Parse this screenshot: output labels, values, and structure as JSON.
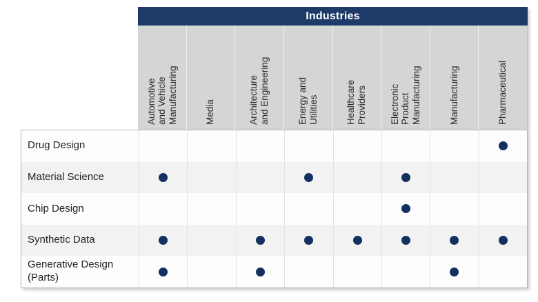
{
  "header": {
    "title": "Industries"
  },
  "matrix": {
    "columns_display": [
      "Automotive\nand Vehicle\nManufacturing",
      "Media",
      "Architecture\nand Engineering",
      "Energy and\nUtilities",
      "Healthcare\nProviders",
      "Electronic\nProduct\nManufacturing",
      "Manufacturing",
      "Pharmaceutical"
    ],
    "rows": [
      {
        "label": "Drug Design",
        "dots": [
          0,
          0,
          0,
          0,
          0,
          0,
          0,
          1
        ]
      },
      {
        "label": "Material Science",
        "dots": [
          1,
          0,
          0,
          1,
          0,
          1,
          0,
          0
        ]
      },
      {
        "label": "Chip Design",
        "dots": [
          0,
          0,
          0,
          0,
          0,
          1,
          0,
          0
        ]
      },
      {
        "label": "Synthetic Data",
        "dots": [
          1,
          0,
          1,
          1,
          1,
          1,
          1,
          1
        ]
      },
      {
        "label": "Generative Design (Parts)",
        "dots": [
          1,
          0,
          1,
          0,
          0,
          0,
          1,
          0
        ]
      }
    ]
  },
  "colors": {
    "band_navy": "#1e3a68",
    "dot_navy": "#14305f",
    "header_gray": "#d5d5d5",
    "row_alt_gray": "#f2f2f2"
  },
  "chart_data": {
    "type": "table",
    "title": "Industries",
    "columns": [
      "Automotive and Vehicle Manufacturing",
      "Media",
      "Architecture and Engineering",
      "Energy and Utilities",
      "Healthcare Providers",
      "Electronic Product Manufacturing",
      "Manufacturing",
      "Pharmaceutical"
    ],
    "rows": [
      "Drug Design",
      "Material Science",
      "Chip Design",
      "Synthetic Data",
      "Generative Design (Parts)"
    ],
    "matrix": [
      [
        0,
        0,
        0,
        0,
        0,
        0,
        0,
        1
      ],
      [
        1,
        0,
        0,
        1,
        0,
        1,
        0,
        0
      ],
      [
        0,
        0,
        0,
        0,
        0,
        1,
        0,
        0
      ],
      [
        1,
        0,
        1,
        1,
        1,
        1,
        1,
        1
      ],
      [
        1,
        0,
        1,
        0,
        0,
        0,
        1,
        0
      ]
    ],
    "mark": "filled navy dot = use case applies to industry",
    "layout": {
      "column_headers": "rotated 90deg, bottom-aligned",
      "rows_alternating_shading": true
    }
  }
}
